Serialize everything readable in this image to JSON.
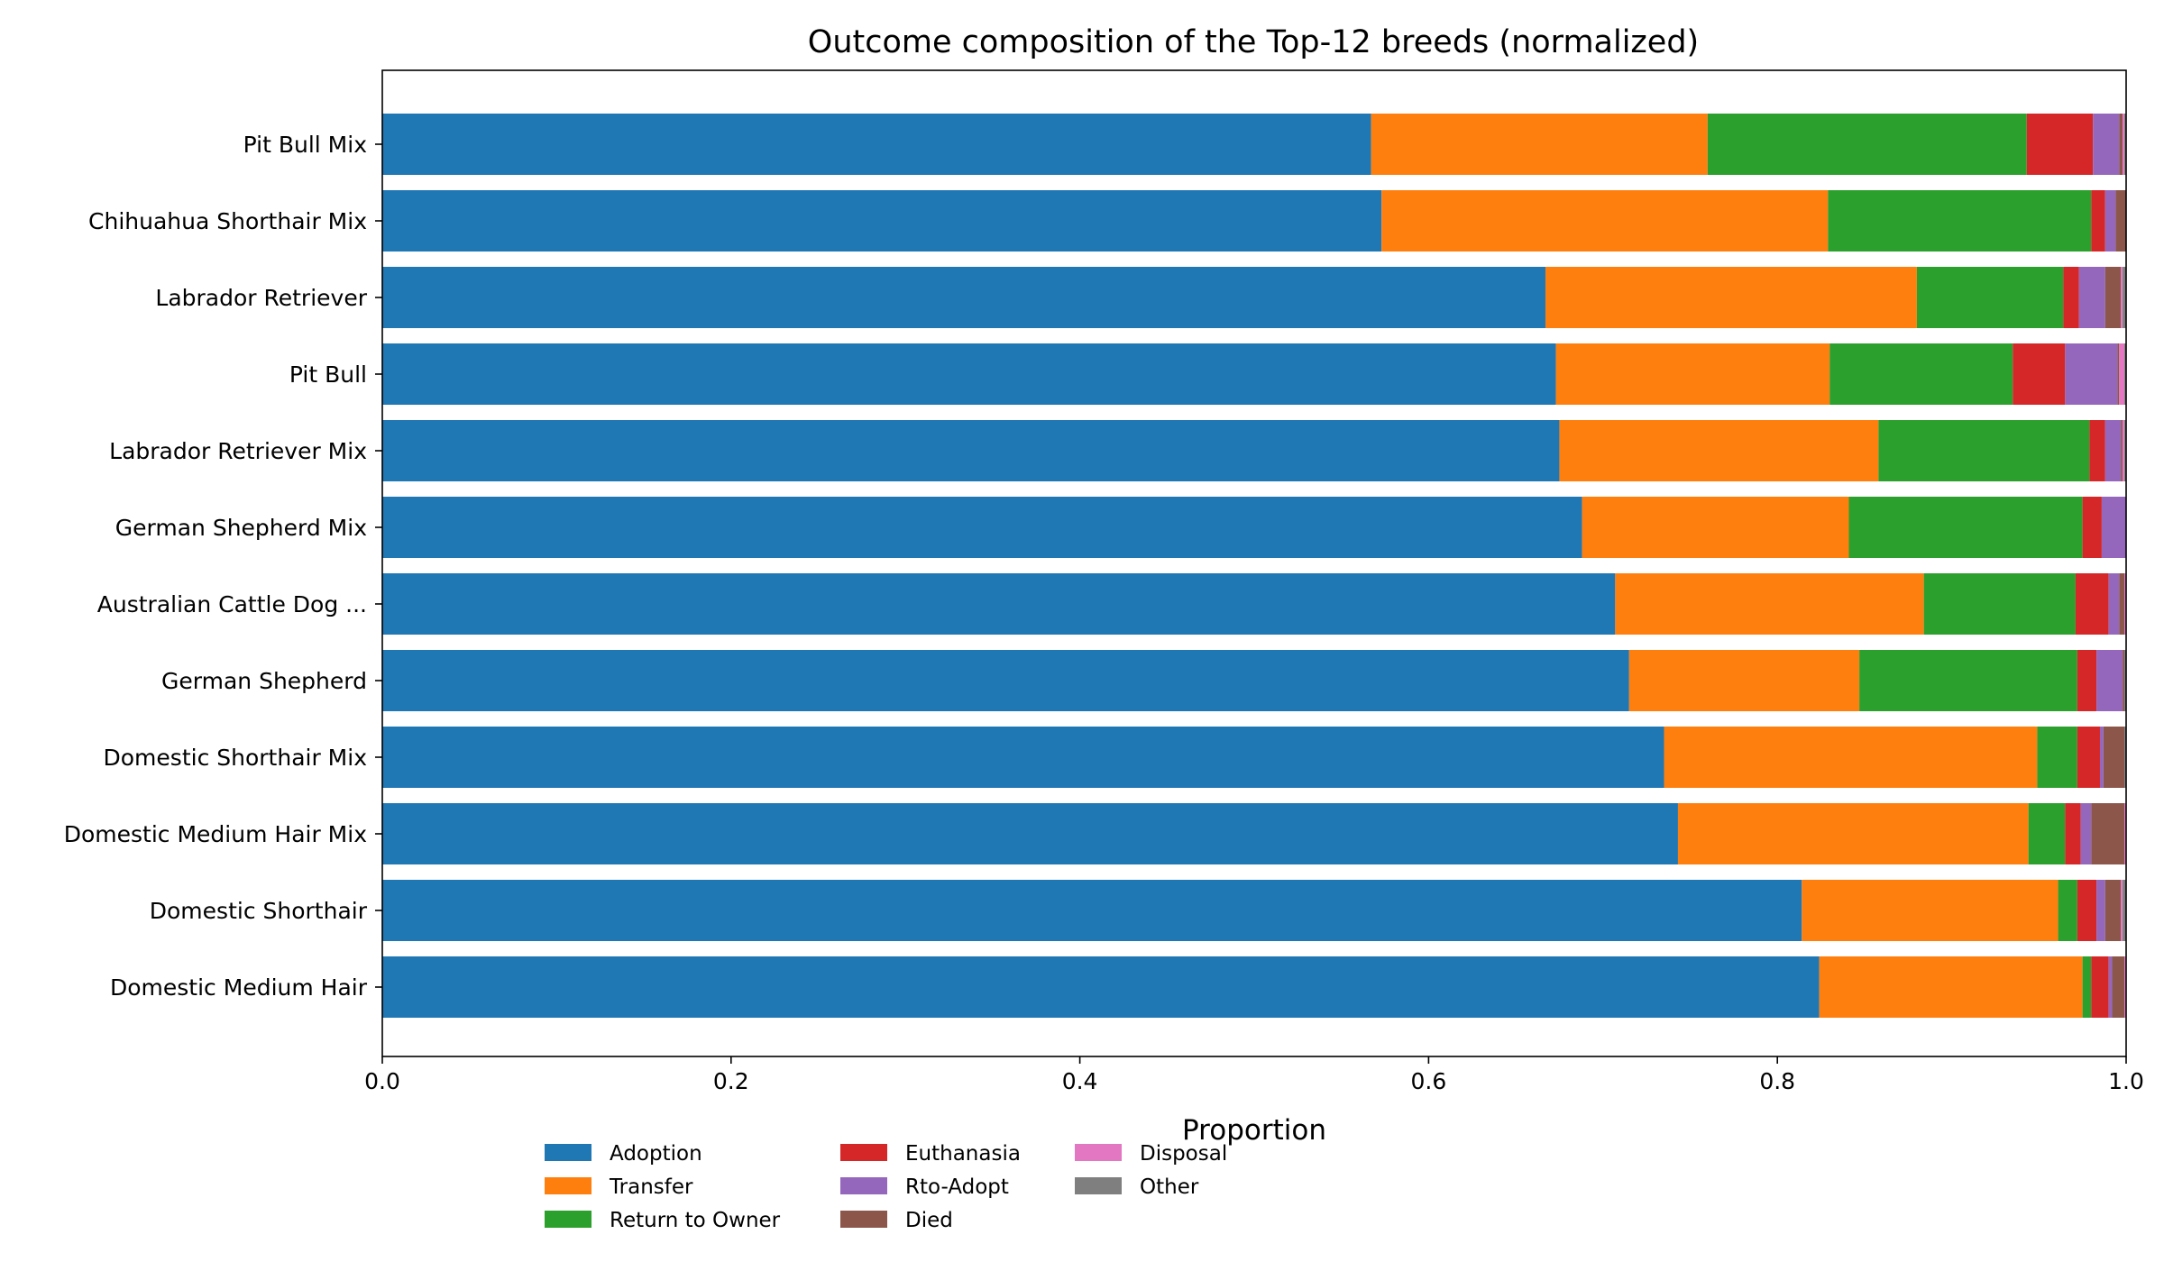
{
  "chart_data": {
    "type": "bar",
    "orientation": "horizontal",
    "stacked": true,
    "title": "Outcome composition of the Top-12 breeds (normalized)",
    "xlabel": "Proportion",
    "ylabel": "",
    "xlim": [
      0,
      1
    ],
    "x_ticks": [
      {
        "value": 0.0,
        "label": "0.0"
      },
      {
        "value": 0.2,
        "label": "0.2"
      },
      {
        "value": 0.4,
        "label": "0.4"
      },
      {
        "value": 0.6,
        "label": "0.6"
      },
      {
        "value": 0.8,
        "label": "0.8"
      },
      {
        "value": 1.0,
        "label": "1.0"
      }
    ],
    "grid": false,
    "legend_position": "bottom-left",
    "categories": [
      "Pit Bull Mix",
      "Chihuahua Shorthair Mix",
      "Labrador Retriever",
      "Pit Bull",
      "Labrador Retriever Mix",
      "German Shepherd Mix",
      "Australian Cattle Dog ...",
      "German Shepherd",
      "Domestic Shorthair Mix",
      "Domestic Medium Hair Mix",
      "Domestic Shorthair",
      "Domestic Medium Hair"
    ],
    "series": [
      {
        "name": "Adoption",
        "color": "#1f77b4",
        "values": [
          0.567,
          0.573,
          0.667,
          0.673,
          0.675,
          0.688,
          0.707,
          0.715,
          0.735,
          0.743,
          0.814,
          0.824
        ]
      },
      {
        "name": "Transfer",
        "color": "#ff7f0e",
        "values": [
          0.193,
          0.256,
          0.213,
          0.157,
          0.183,
          0.153,
          0.177,
          0.132,
          0.214,
          0.201,
          0.147,
          0.151
        ]
      },
      {
        "name": "Return to Owner",
        "color": "#2ca02c",
        "values": [
          0.183,
          0.151,
          0.084,
          0.105,
          0.121,
          0.134,
          0.087,
          0.125,
          0.023,
          0.021,
          0.011,
          0.005
        ]
      },
      {
        "name": "Euthanasia",
        "color": "#d62728",
        "values": [
          0.038,
          0.008,
          0.009,
          0.03,
          0.009,
          0.011,
          0.019,
          0.011,
          0.013,
          0.009,
          0.011,
          0.01
        ]
      },
      {
        "name": "Rto-Adopt",
        "color": "#9467bd",
        "values": [
          0.015,
          0.006,
          0.015,
          0.03,
          0.009,
          0.014,
          0.006,
          0.015,
          0.002,
          0.006,
          0.005,
          0.002
        ]
      },
      {
        "name": "Died",
        "color": "#8c564b",
        "values": [
          0.002,
          0.006,
          0.009,
          0.001,
          0.001,
          0.0,
          0.003,
          0.001,
          0.012,
          0.019,
          0.009,
          0.007
        ]
      },
      {
        "name": "Disposal",
        "color": "#e377c2",
        "values": [
          0.001,
          0.0,
          0.001,
          0.003,
          0.001,
          0.0,
          0.001,
          0.0,
          0.0,
          0.001,
          0.001,
          0.001
        ]
      },
      {
        "name": "Other",
        "color": "#7f7f7f",
        "values": [
          0.001,
          0.0,
          0.002,
          0.001,
          0.001,
          0.0,
          0.0,
          0.001,
          0.001,
          0.0,
          0.002,
          0.0
        ]
      }
    ]
  }
}
